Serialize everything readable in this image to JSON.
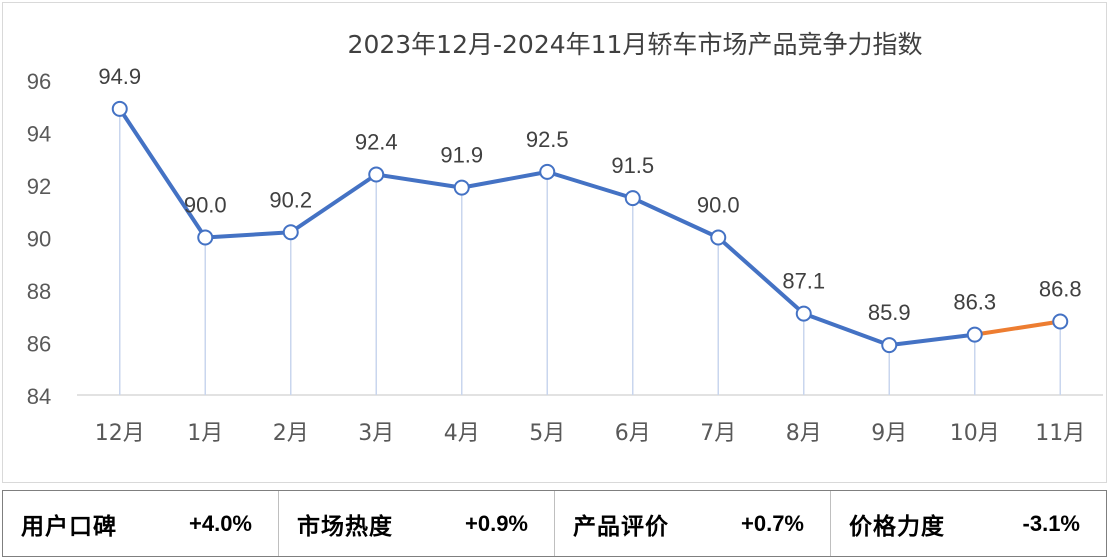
{
  "chart_data": {
    "type": "line",
    "title": "2023年12月-2024年11月轿车市场产品竞争力指数",
    "categories": [
      "12月",
      "1月",
      "2月",
      "3月",
      "4月",
      "5月",
      "6月",
      "7月",
      "8月",
      "9月",
      "10月",
      "11月"
    ],
    "series": [
      {
        "values": [
          94.9,
          90.0,
          90.2,
          92.4,
          91.9,
          92.5,
          91.5,
          90.0,
          87.1,
          85.9,
          86.3,
          86.8
        ],
        "data_labels": [
          "94.9",
          "90.0",
          "90.2",
          "92.4",
          "91.9",
          "92.5",
          "91.5",
          "90.0",
          "87.1",
          "85.9",
          "86.3",
          "86.8"
        ]
      }
    ],
    "ylim": [
      84,
      96
    ],
    "yticks": [
      84,
      86,
      88,
      90,
      92,
      94,
      96
    ],
    "grid": false,
    "colors": {
      "line": "#4472c4",
      "last_segment": "#ed7d31",
      "marker_fill": "#ffffff",
      "drop_line": "#c9d6ee"
    }
  },
  "stats": [
    {
      "label": "用户口碑",
      "value": "+4.0%"
    },
    {
      "label": "市场热度",
      "value": "+0.9%"
    },
    {
      "label": "产品评价",
      "value": "+0.7%"
    },
    {
      "label": "价格力度",
      "value": "-3.1%"
    }
  ]
}
